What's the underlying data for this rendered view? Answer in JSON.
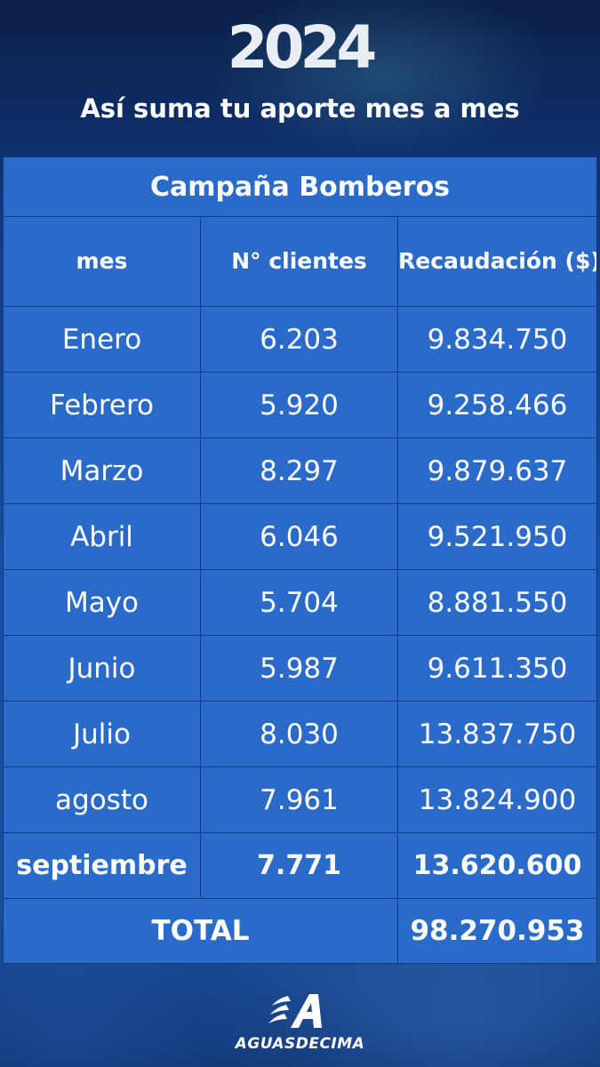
{
  "header": {
    "year": "2024",
    "subtitle": "Así suma tu aporte mes a mes"
  },
  "table": {
    "title": "Campaña Bomberos",
    "columns": [
      "mes",
      "N° clientes",
      "Recaudación ($)"
    ],
    "rows": [
      {
        "mes": "Enero",
        "clientes": "6.203",
        "recaudacion": "9.834.750"
      },
      {
        "mes": "Febrero",
        "clientes": "5.920",
        "recaudacion": "9.258.466"
      },
      {
        "mes": "Marzo",
        "clientes": "8.297",
        "recaudacion": "9.879.637"
      },
      {
        "mes": "Abril",
        "clientes": "6.046",
        "recaudacion": "9.521.950"
      },
      {
        "mes": "Mayo",
        "clientes": "5.704",
        "recaudacion": "8.881.550"
      },
      {
        "mes": "Junio",
        "clientes": "5.987",
        "recaudacion": "9.611.350"
      },
      {
        "mes": "Julio",
        "clientes": "8.030",
        "recaudacion": "13.837.750"
      },
      {
        "mes": "agosto",
        "clientes": "7.961",
        "recaudacion": "13.824.900"
      },
      {
        "mes": "septiembre",
        "clientes": "7.771",
        "recaudacion": "13.620.600"
      }
    ],
    "highlight_color": "#3fb2f0",
    "total": {
      "label": "TOTAL",
      "value": "98.270.953"
    }
  },
  "logo": {
    "icon": "aguasdecima-logo-icon",
    "brand": "AGUASDECIMA"
  }
}
